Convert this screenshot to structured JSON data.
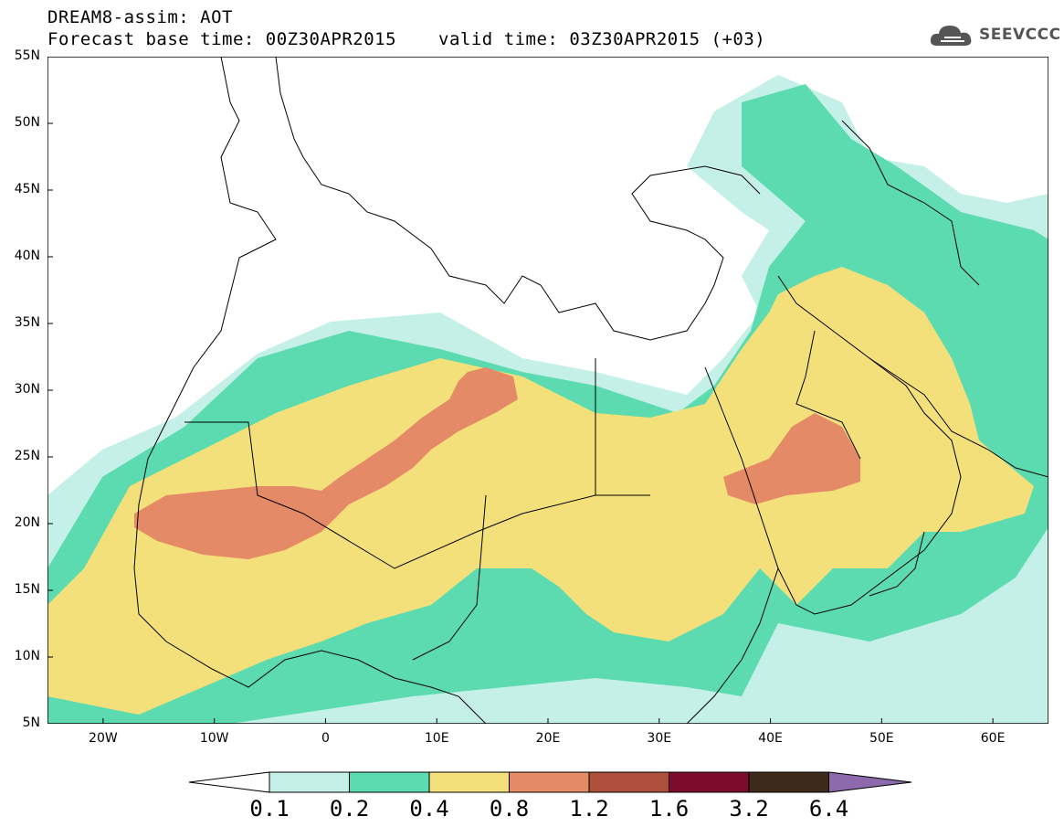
{
  "title": {
    "line1": "DREAM8-assim: AOT",
    "base_time": "Forecast base time: 00Z30APR2015",
    "valid_time": "valid time: 03Z30APR2015 (+03)"
  },
  "logo": {
    "text": "SEEVCCC",
    "icon": "cloud-icon"
  },
  "map": {
    "projection": "lat-lon",
    "lon_range": [
      -25,
      65
    ],
    "lat_range": [
      5,
      55
    ],
    "lat_labels": [
      "55N",
      "50N",
      "45N",
      "40N",
      "35N",
      "30N",
      "25N",
      "20N",
      "15N",
      "10N",
      "5N"
    ],
    "lon_labels": [
      "20W",
      "10W",
      "0",
      "10E",
      "20E",
      "30E",
      "40E",
      "50E",
      "60E"
    ]
  },
  "legend": {
    "thresholds": [
      "0.1",
      "0.2",
      "0.4",
      "0.8",
      "1.2",
      "1.6",
      "3.2",
      "6.4"
    ],
    "colors": [
      "#ffffff",
      "#c4f0e8",
      "#5ddbb0",
      "#f4e07a",
      "#e58a66",
      "#ae4f3c",
      "#7c0b2c",
      "#3e2a1a",
      "#8d6aab"
    ]
  },
  "colors": {
    "c01": "#c4f0e8",
    "c02": "#5ddbb0",
    "c04": "#f4e07a",
    "c08": "#e58a66"
  }
}
